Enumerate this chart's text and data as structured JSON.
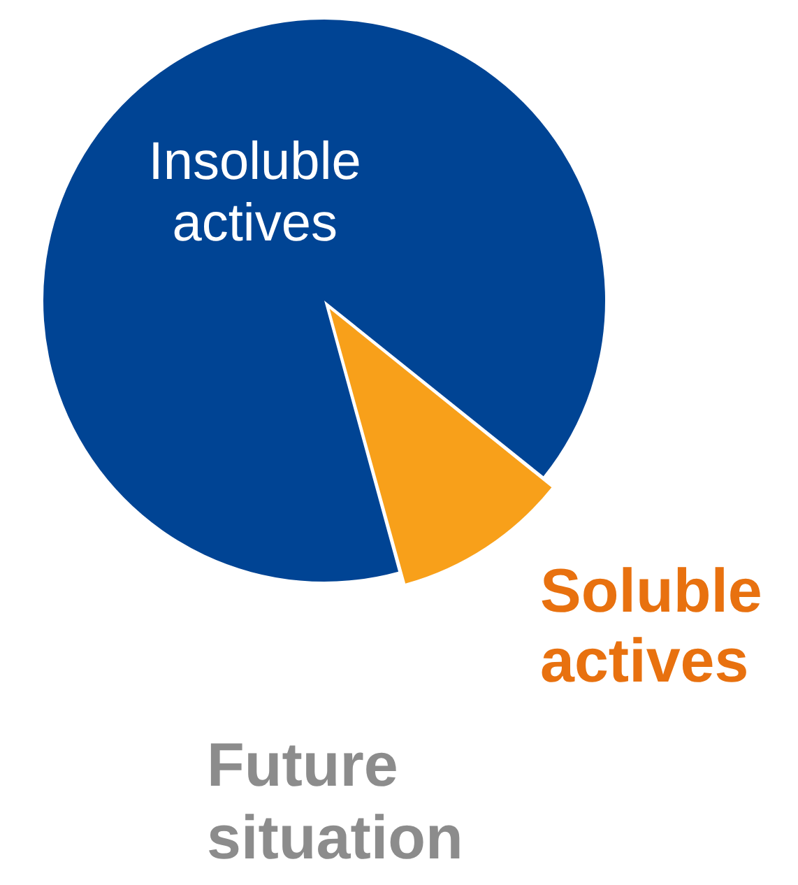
{
  "chart_data": {
    "type": "pie",
    "title": "Future situation",
    "categories": [
      "Soluble actives",
      "Insoluble actives"
    ],
    "values": [
      10,
      90
    ],
    "colors": [
      "#f8a01a",
      "#004494"
    ]
  }
}
